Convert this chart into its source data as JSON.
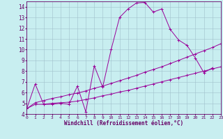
{
  "xlabel": "Windchill (Refroidissement éolien,°C)",
  "xlim": [
    0,
    23
  ],
  "ylim": [
    4,
    14.5
  ],
  "yticks": [
    4,
    5,
    6,
    7,
    8,
    9,
    10,
    11,
    12,
    13,
    14
  ],
  "xticks": [
    0,
    1,
    2,
    3,
    4,
    5,
    6,
    7,
    8,
    9,
    10,
    11,
    12,
    13,
    14,
    15,
    16,
    17,
    18,
    19,
    20,
    21,
    22,
    23
  ],
  "bg_color": "#c8eef0",
  "plot_bg": "#c8eef0",
  "line_color": "#990099",
  "grid_color": "#a0c0cc",
  "series": [
    {
      "x": [
        0,
        1,
        2,
        3,
        4,
        5,
        6,
        7,
        8,
        9,
        10,
        11,
        12,
        13,
        14,
        15,
        16,
        17,
        18,
        19,
        20,
        21,
        22
      ],
      "y": [
        4.5,
        6.8,
        4.9,
        4.9,
        5.0,
        4.9,
        6.6,
        4.2,
        8.5,
        6.5,
        10.0,
        13.0,
        13.8,
        14.35,
        14.4,
        13.5,
        13.8,
        11.9,
        10.9,
        10.4,
        9.2,
        7.85,
        8.3
      ]
    },
    {
      "x": [
        0,
        1,
        2,
        3,
        4,
        5,
        6,
        7,
        8,
        9,
        10,
        11,
        12,
        13,
        14,
        15,
        16,
        17,
        18,
        19,
        20,
        21,
        22,
        23
      ],
      "y": [
        4.5,
        4.9,
        4.9,
        5.0,
        5.05,
        5.1,
        5.2,
        5.35,
        5.5,
        5.7,
        5.85,
        6.05,
        6.2,
        6.4,
        6.6,
        6.8,
        7.0,
        7.2,
        7.4,
        7.6,
        7.8,
        8.0,
        8.2,
        8.4
      ]
    },
    {
      "x": [
        0,
        1,
        2,
        3,
        4,
        5,
        6,
        7,
        8,
        9,
        10,
        11,
        12,
        13,
        14,
        15,
        16,
        17,
        18,
        19,
        20,
        21,
        22,
        23
      ],
      "y": [
        4.5,
        5.05,
        5.25,
        5.45,
        5.6,
        5.8,
        5.95,
        6.15,
        6.4,
        6.6,
        6.85,
        7.1,
        7.35,
        7.6,
        7.9,
        8.15,
        8.4,
        8.7,
        9.0,
        9.3,
        9.6,
        9.9,
        10.2,
        10.55
      ]
    }
  ]
}
